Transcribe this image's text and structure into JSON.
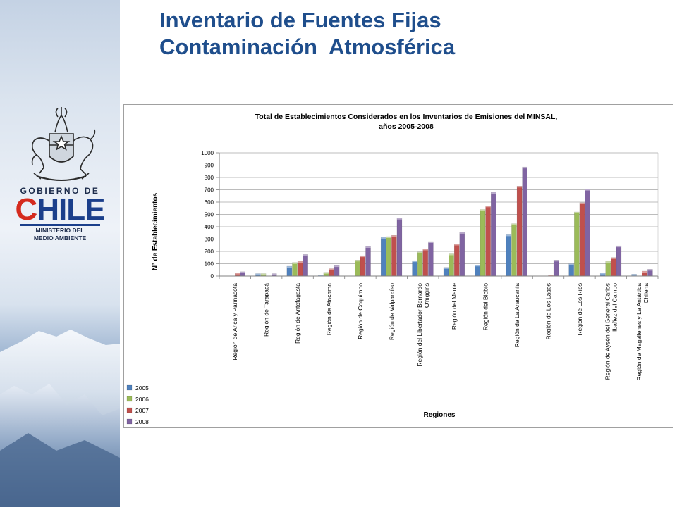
{
  "slide": {
    "title_line1": "Inventario de Fuentes Fijas",
    "title_line2": "Contaminación  Atmosférica"
  },
  "logo": {
    "gobierno": "GOBIERNO DE",
    "chile": "CHILE",
    "ministerio_line1": "MINISTERIO DEL",
    "ministerio_line2": "MEDIO AMBIENTE"
  },
  "colors": {
    "title": "#1f4e8c",
    "series": [
      "#4f81bd",
      "#9bbb59",
      "#c0504d",
      "#8064a2"
    ]
  },
  "chart_data": {
    "type": "bar",
    "title_line1": "Total de Establecimientos Considerados en los  Inventarios de Emisiones del MINSAL,",
    "title_line2": "años 2005-2008",
    "xlabel": "Regiones",
    "ylabel": "Nº de Establecimientos",
    "ylim": [
      0,
      1000
    ],
    "yticks": [
      0,
      100,
      200,
      300,
      400,
      500,
      600,
      700,
      800,
      900,
      1000
    ],
    "grid": true,
    "legend_position": "bottom-left",
    "categories": [
      [
        "Región de Arica y Parinacota"
      ],
      [
        "Región de Tarapacá"
      ],
      [
        "Región de Antofagasta"
      ],
      [
        "Región de Atacama"
      ],
      [
        "Región de Coquimbo"
      ],
      [
        "Región de Valparaíso"
      ],
      [
        "Región del Libertador Bernardo",
        "O'higgins"
      ],
      [
        "Región del Maule"
      ],
      [
        "Región del Biobío"
      ],
      [
        "Región de La Araucanía"
      ],
      [
        "Región de Los Lagos"
      ],
      [
        "Región de Los Ríos"
      ],
      [
        "Región de Aysén del General Carlos",
        "Ibañez del Campo"
      ],
      [
        "Región de Magallenes y La Antártica",
        "Chilena"
      ]
    ],
    "series": [
      {
        "name": "2005",
        "values": [
          0,
          20,
          80,
          10,
          0,
          315,
          125,
          70,
          90,
          335,
          0,
          100,
          25,
          15
        ]
      },
      {
        "name": "2006",
        "values": [
          0,
          20,
          110,
          30,
          130,
          320,
          195,
          180,
          540,
          425,
          0,
          520,
          120,
          0
        ]
      },
      {
        "name": "2007",
        "values": [
          25,
          0,
          120,
          60,
          165,
          330,
          220,
          260,
          570,
          730,
          10,
          595,
          150,
          40
        ]
      },
      {
        "name": "2008",
        "values": [
          35,
          20,
          175,
          85,
          240,
          470,
          280,
          355,
          680,
          885,
          130,
          705,
          245,
          55
        ]
      }
    ]
  }
}
